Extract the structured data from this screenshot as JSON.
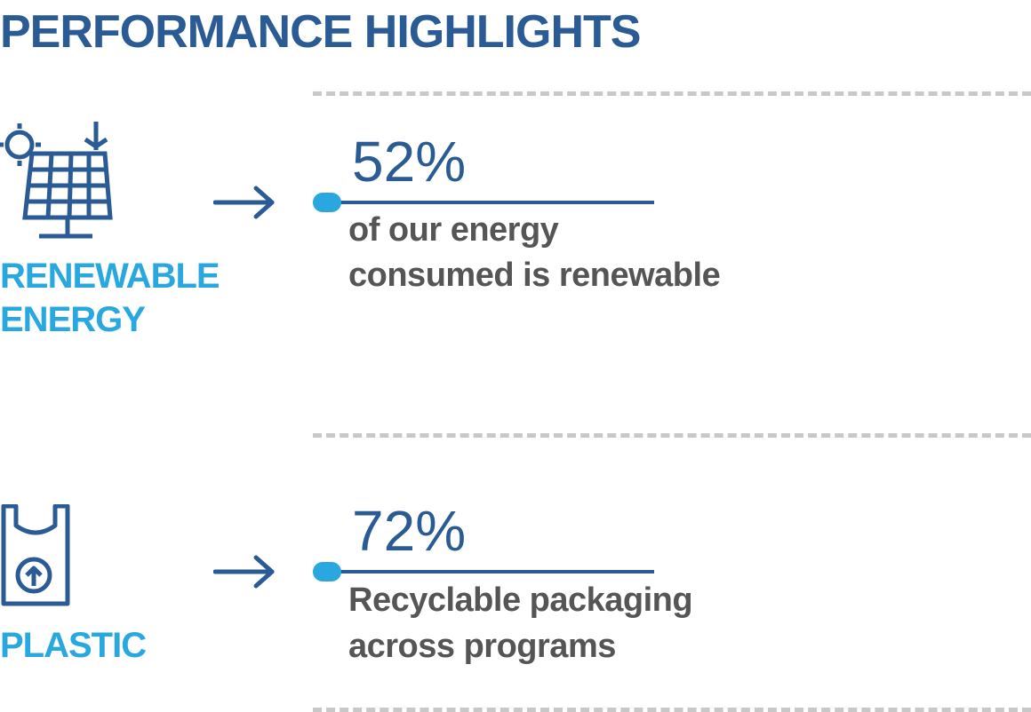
{
  "title": "PERFORMANCE HIGHLIGHTS",
  "colors": {
    "primary": "#2a5b94",
    "accent": "#29a8e0",
    "text": "#555555",
    "divider": "#c8c8c8"
  },
  "highlights": [
    {
      "icon": "solar-panel-icon",
      "category_line1": "RENEWABLE",
      "category_line2": "ENERGY",
      "value": "52%",
      "desc_line1": "of our energy",
      "desc_line2": "consumed is renewable"
    },
    {
      "icon": "plastic-bag-icon",
      "category_line1": "PLASTIC",
      "value": "72%",
      "desc_line1": "Recyclable packaging",
      "desc_line2": "across programs"
    }
  ]
}
